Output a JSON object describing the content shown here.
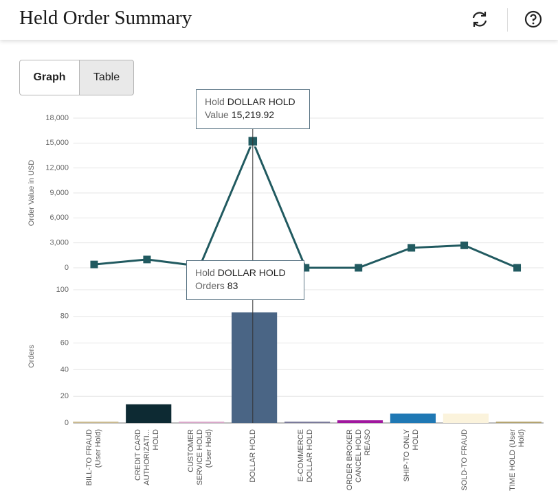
{
  "header": {
    "title": "Held Order Summary"
  },
  "tabs": [
    "Graph",
    "Table"
  ],
  "chart_data": [
    {
      "type": "line",
      "y_label": "Order Value in USD",
      "color": "#215a60",
      "categories": [
        "BILL-TO FRAUD (User Hold)",
        "CREDIT CARD AUTHORIZATI... HOLD",
        "CUSTOMER SERVICE HOLD (User Hold)",
        "DOLLAR HOLD",
        "E-COMMERCE DOLLAR HOLD",
        "ORDER BROKER CANCEL HOLD REASO",
        "SHIP-TO ONLY HOLD",
        "SOLD-TO FRAUD",
        "TIME HOLD (User Hold)"
      ],
      "values": [
        400,
        1000,
        200,
        15219.92,
        0,
        0,
        2400,
        2700,
        0
      ],
      "value_labels": [
        null,
        null,
        null,
        "15,219.92",
        null,
        null,
        null,
        null,
        null
      ],
      "tooltip_keys": [
        "Hold",
        "Value"
      ],
      "ylim": [
        0,
        18000
      ],
      "yticks": [
        0,
        {
          "value": 3000,
          "label": "3,000"
        },
        {
          "value": 6000,
          "label": "6,000"
        },
        {
          "value": 9000,
          "label": "9,000"
        },
        {
          "value": 12000,
          "label": "12,000"
        },
        {
          "value": 15000,
          "label": "15,000"
        },
        {
          "value": 18000,
          "label": "18,000"
        }
      ],
      "grid": true
    },
    {
      "type": "bar",
      "y_label": "Orders",
      "categories": [
        "BILL-TO FRAUD (User Hold)",
        "CREDIT CARD AUTHORIZATI... HOLD",
        "CUSTOMER SERVICE HOLD (User Hold)",
        "DOLLAR HOLD",
        "E-COMMERCE DOLLAR HOLD",
        "ORDER BROKER CANCEL HOLD REASO",
        "SHIP-TO ONLY HOLD",
        "SOLD-TO FRAUD",
        "TIME HOLD (User Hold)"
      ],
      "values": [
        1,
        14,
        1,
        83,
        1,
        2,
        7,
        7,
        1
      ],
      "colors": [
        "#c9b98f",
        "#0d2a33",
        "#d9a7c9",
        "#4a6585",
        "#7a7a9a",
        "#a0179e",
        "#1f78b4",
        "#fbf3dc",
        "#b3a36f"
      ],
      "tooltip_keys": [
        "Hold"
      ],
      "ylim": [
        0,
        100
      ],
      "yticks": [
        0,
        20,
        40,
        60,
        80,
        100
      ],
      "grid": true
    }
  ]
}
